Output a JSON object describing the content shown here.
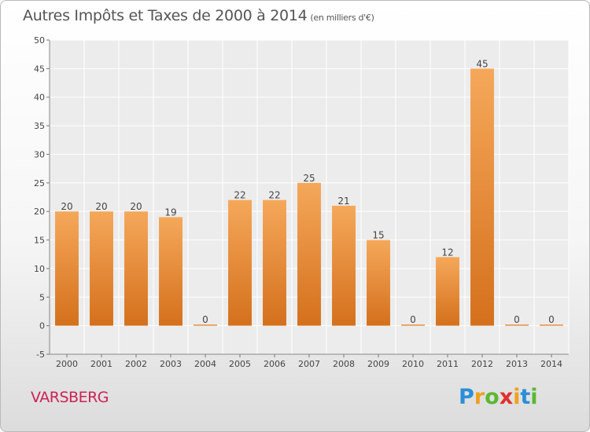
{
  "chart_data": {
    "type": "bar",
    "title": "Autres Impôts et Taxes de 2000 à 2014",
    "unit": "(en milliers d'€)",
    "categories": [
      "2000",
      "2001",
      "2002",
      "2003",
      "2004",
      "2005",
      "2006",
      "2007",
      "2008",
      "2009",
      "2010",
      "2011",
      "2012",
      "2013",
      "2014"
    ],
    "values": [
      20,
      20,
      20,
      19,
      0,
      22,
      22,
      25,
      21,
      15,
      0,
      12,
      45,
      0,
      0
    ],
    "ylim": [
      -5,
      50
    ],
    "yticks": [
      -5,
      0,
      5,
      10,
      15,
      20,
      25,
      30,
      35,
      40,
      45,
      50
    ],
    "grid": true,
    "bar_color": "#e8852b"
  },
  "commune": "VARSBERG",
  "logo": {
    "letters": [
      "P",
      "r",
      "o",
      "x",
      "i",
      "t",
      "i"
    ],
    "colors": [
      "#2a8fd8",
      "#f0a020",
      "#5bb830",
      "#e03030",
      "#f0a020",
      "#2a8fd8",
      "#5bb830"
    ]
  }
}
